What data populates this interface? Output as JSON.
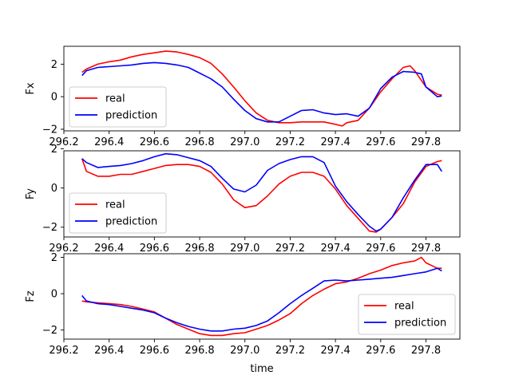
{
  "chart_data": [
    {
      "type": "line",
      "ylabel": "Fx",
      "xlabel": "",
      "xlim": [
        296.2,
        297.95
      ],
      "ylim": [
        -2.1,
        3.1
      ],
      "xticks": [
        "296.2",
        "296.4",
        "296.6",
        "296.8",
        "297.0",
        "297.2",
        "297.4",
        "297.6",
        "297.8"
      ],
      "yticks": [
        "2",
        "0",
        "−2"
      ],
      "legend_position": "lower-left",
      "series": [
        {
          "name": "real",
          "color": "#ff0000",
          "x": [
            296.28,
            296.3,
            296.35,
            296.4,
            296.45,
            296.5,
            296.55,
            296.6,
            296.65,
            296.7,
            296.75,
            296.8,
            296.85,
            296.9,
            296.95,
            297.0,
            297.05,
            297.1,
            297.15,
            297.2,
            297.25,
            297.3,
            297.35,
            297.4,
            297.43,
            297.45,
            297.5,
            297.55,
            297.6,
            297.65,
            297.7,
            297.73,
            297.75,
            297.8,
            297.85,
            297.87
          ],
          "y": [
            1.5,
            1.7,
            2.0,
            2.15,
            2.25,
            2.45,
            2.6,
            2.7,
            2.8,
            2.75,
            2.6,
            2.4,
            2.05,
            1.4,
            0.6,
            -0.25,
            -1.0,
            -1.45,
            -1.6,
            -1.6,
            -1.55,
            -1.55,
            -1.55,
            -1.7,
            -1.8,
            -1.6,
            -1.45,
            -0.7,
            0.3,
            1.1,
            1.8,
            1.9,
            1.6,
            0.6,
            0.15,
            0.1
          ]
        },
        {
          "name": "prediction",
          "color": "#0000ff",
          "x": [
            296.28,
            296.3,
            296.35,
            296.4,
            296.45,
            296.5,
            296.55,
            296.6,
            296.65,
            296.7,
            296.75,
            296.8,
            296.85,
            296.9,
            296.95,
            297.0,
            297.05,
            297.1,
            297.15,
            297.2,
            297.25,
            297.3,
            297.35,
            297.4,
            297.45,
            297.5,
            297.55,
            297.6,
            297.65,
            297.7,
            297.75,
            297.78,
            297.8,
            297.85,
            297.87
          ],
          "y": [
            1.3,
            1.6,
            1.8,
            1.85,
            1.9,
            1.95,
            2.05,
            2.1,
            2.05,
            1.95,
            1.8,
            1.45,
            1.1,
            0.6,
            -0.15,
            -0.85,
            -1.35,
            -1.55,
            -1.55,
            -1.2,
            -0.85,
            -0.8,
            -1.0,
            -1.1,
            -1.05,
            -1.2,
            -0.7,
            0.5,
            1.2,
            1.55,
            1.5,
            1.4,
            0.6,
            0.0,
            0.05
          ]
        }
      ]
    },
    {
      "type": "line",
      "ylabel": "Fy",
      "xlabel": "",
      "xlim": [
        296.2,
        297.95
      ],
      "ylim": [
        -2.5,
        1.9
      ],
      "xticks": [
        "296.2",
        "296.4",
        "296.6",
        "296.8",
        "297.0",
        "297.2",
        "297.4",
        "297.6",
        "297.8"
      ],
      "yticks": [
        "2",
        "0",
        "−2"
      ],
      "legend_position": "lower-left",
      "series": [
        {
          "name": "real",
          "color": "#ff0000",
          "x": [
            296.28,
            296.3,
            296.35,
            296.4,
            296.45,
            296.5,
            296.55,
            296.6,
            296.65,
            296.7,
            296.75,
            296.8,
            296.85,
            296.9,
            296.95,
            297.0,
            297.05,
            297.1,
            297.15,
            297.2,
            297.25,
            297.3,
            297.35,
            297.4,
            297.45,
            297.5,
            297.55,
            297.58,
            297.6,
            297.65,
            297.7,
            297.75,
            297.8,
            297.85,
            297.87
          ],
          "y": [
            1.5,
            0.85,
            0.6,
            0.6,
            0.7,
            0.7,
            0.85,
            1.0,
            1.15,
            1.2,
            1.2,
            1.1,
            0.8,
            0.2,
            -0.6,
            -1.0,
            -0.9,
            -0.4,
            0.2,
            0.6,
            0.8,
            0.8,
            0.6,
            -0.05,
            -0.9,
            -1.55,
            -2.2,
            -2.25,
            -2.1,
            -1.5,
            -0.8,
            0.3,
            1.1,
            1.35,
            1.4
          ]
        },
        {
          "name": "prediction",
          "color": "#0000ff",
          "x": [
            296.28,
            296.3,
            296.35,
            296.4,
            296.45,
            296.5,
            296.55,
            296.6,
            296.65,
            296.7,
            296.75,
            296.8,
            296.85,
            296.9,
            296.95,
            297.0,
            297.05,
            297.1,
            297.15,
            297.2,
            297.25,
            297.3,
            297.35,
            297.4,
            297.45,
            297.5,
            297.55,
            297.58,
            297.6,
            297.65,
            297.7,
            297.75,
            297.8,
            297.85,
            297.87
          ],
          "y": [
            1.5,
            1.3,
            1.05,
            1.1,
            1.15,
            1.25,
            1.4,
            1.6,
            1.75,
            1.7,
            1.55,
            1.4,
            1.1,
            0.5,
            -0.05,
            -0.2,
            0.15,
            0.9,
            1.25,
            1.45,
            1.6,
            1.6,
            1.3,
            0.1,
            -0.7,
            -1.35,
            -1.95,
            -2.2,
            -2.1,
            -1.5,
            -0.5,
            0.4,
            1.2,
            1.2,
            0.85
          ]
        }
      ]
    },
    {
      "type": "line",
      "ylabel": "Fz",
      "xlabel": "time",
      "xlim": [
        296.2,
        297.95
      ],
      "ylim": [
        -2.5,
        2.2
      ],
      "xticks": [
        "296.2",
        "296.4",
        "296.6",
        "296.8",
        "297.0",
        "297.2",
        "297.4",
        "297.6",
        "297.8"
      ],
      "yticks": [
        "2",
        "0",
        "−2"
      ],
      "legend_position": "lower-right",
      "series": [
        {
          "name": "real",
          "color": "#ff0000",
          "x": [
            296.28,
            296.3,
            296.35,
            296.4,
            296.45,
            296.5,
            296.55,
            296.6,
            296.65,
            296.7,
            296.75,
            296.8,
            296.85,
            296.9,
            296.95,
            297.0,
            297.05,
            297.1,
            297.15,
            297.2,
            297.25,
            297.3,
            297.35,
            297.4,
            297.45,
            297.5,
            297.55,
            297.6,
            297.65,
            297.7,
            297.75,
            297.78,
            297.8,
            297.85,
            297.87
          ],
          "y": [
            -0.4,
            -0.45,
            -0.5,
            -0.55,
            -0.6,
            -0.7,
            -0.85,
            -1.0,
            -1.35,
            -1.7,
            -1.95,
            -2.2,
            -2.3,
            -2.3,
            -2.2,
            -2.15,
            -1.95,
            -1.75,
            -1.45,
            -1.1,
            -0.55,
            -0.1,
            0.25,
            0.55,
            0.65,
            0.85,
            1.1,
            1.3,
            1.55,
            1.7,
            1.8,
            2.0,
            1.7,
            1.4,
            1.4
          ]
        },
        {
          "name": "prediction",
          "color": "#0000ff",
          "x": [
            296.28,
            296.3,
            296.35,
            296.4,
            296.45,
            296.5,
            296.55,
            296.6,
            296.65,
            296.7,
            296.75,
            296.8,
            296.85,
            296.9,
            296.95,
            297.0,
            297.05,
            297.1,
            297.15,
            297.2,
            297.25,
            297.3,
            297.35,
            297.4,
            297.45,
            297.5,
            297.55,
            297.6,
            297.65,
            297.7,
            297.75,
            297.8,
            297.85,
            297.87
          ],
          "y": [
            -0.1,
            -0.4,
            -0.55,
            -0.6,
            -0.7,
            -0.8,
            -0.9,
            -1.05,
            -1.35,
            -1.6,
            -1.8,
            -1.95,
            -2.05,
            -2.05,
            -1.95,
            -1.9,
            -1.75,
            -1.5,
            -1.05,
            -0.55,
            -0.1,
            0.3,
            0.7,
            0.75,
            0.7,
            0.75,
            0.8,
            0.85,
            0.9,
            1.0,
            1.1,
            1.2,
            1.4,
            1.25
          ]
        }
      ]
    }
  ]
}
